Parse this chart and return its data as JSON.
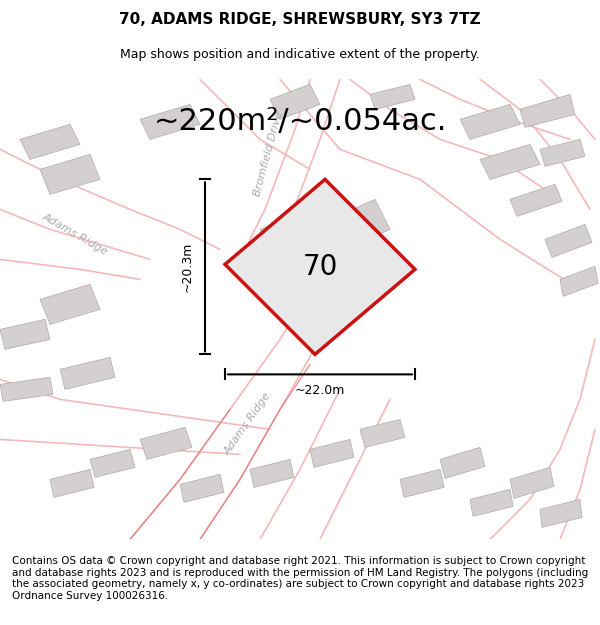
{
  "title": "70, ADAMS RIDGE, SHREWSBURY, SY3 7TZ",
  "subtitle": "Map shows position and indicative extent of the property.",
  "area_text": "~220m²/~0.054ac.",
  "number_label": "70",
  "dim_height": "~20.3m",
  "dim_width": "~22.0m",
  "footer": "Contains OS data © Crown copyright and database right 2021. This information is subject to Crown copyright and database rights 2023 and is reproduced with the permission of HM Land Registry. The polygons (including the associated geometry, namely x, y co-ordinates) are subject to Crown copyright and database rights 2023 Ordnance Survey 100026316.",
  "bg_color": "#f5f5f5",
  "map_bg": "#f0efef",
  "road_color_light": "#f5b8b8",
  "road_color_dark": "#e87878",
  "building_color": "#d4d0d0",
  "building_stroke": "#b0aaaa",
  "plot_color": "#cc1111",
  "plot_fill": "#e8e8e8",
  "road_label_color": "#aaaaaa",
  "title_fontsize": 11,
  "subtitle_fontsize": 9,
  "area_fontsize": 22,
  "number_fontsize": 20,
  "footer_fontsize": 7.5
}
